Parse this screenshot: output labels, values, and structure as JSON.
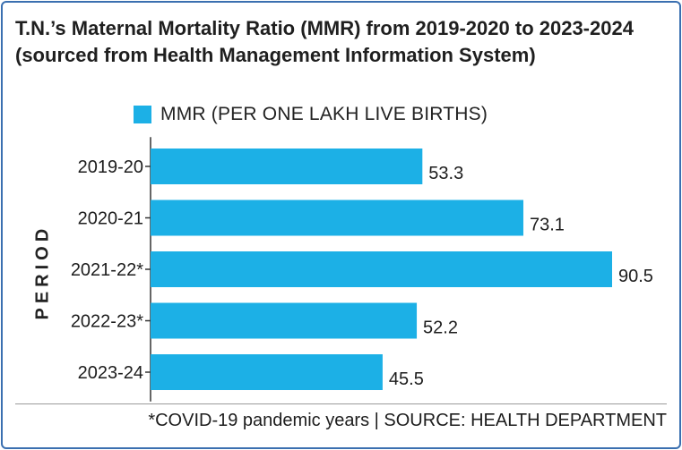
{
  "chart_data": {
    "type": "bar",
    "orientation": "horizontal",
    "title": "T.N.’s Maternal Mortality Ratio (MMR) from 2019-2020 to 2023-2024 (sourced from Health Management Information System)",
    "ylabel": "PERIOD",
    "xlabel": "",
    "categories": [
      "2019-20",
      "2020-21",
      "2021-22*",
      "2022-23*",
      "2023-24"
    ],
    "series": [
      {
        "name": "MMR (PER ONE LAKH LIVE BIRTHS)",
        "values": [
          53.3,
          73.1,
          90.5,
          52.2,
          45.5
        ]
      }
    ],
    "value_labels": [
      "53.3",
      "73.1",
      "90.5",
      "52.2",
      "45.5"
    ],
    "xlim": [
      0,
      90.5
    ],
    "grid": false,
    "legend_position": "top-left",
    "bar_color": "#1cb0e6",
    "footnote": "*COVID-19 pandemic years | SOURCE: HEALTH DEPARTMENT"
  }
}
